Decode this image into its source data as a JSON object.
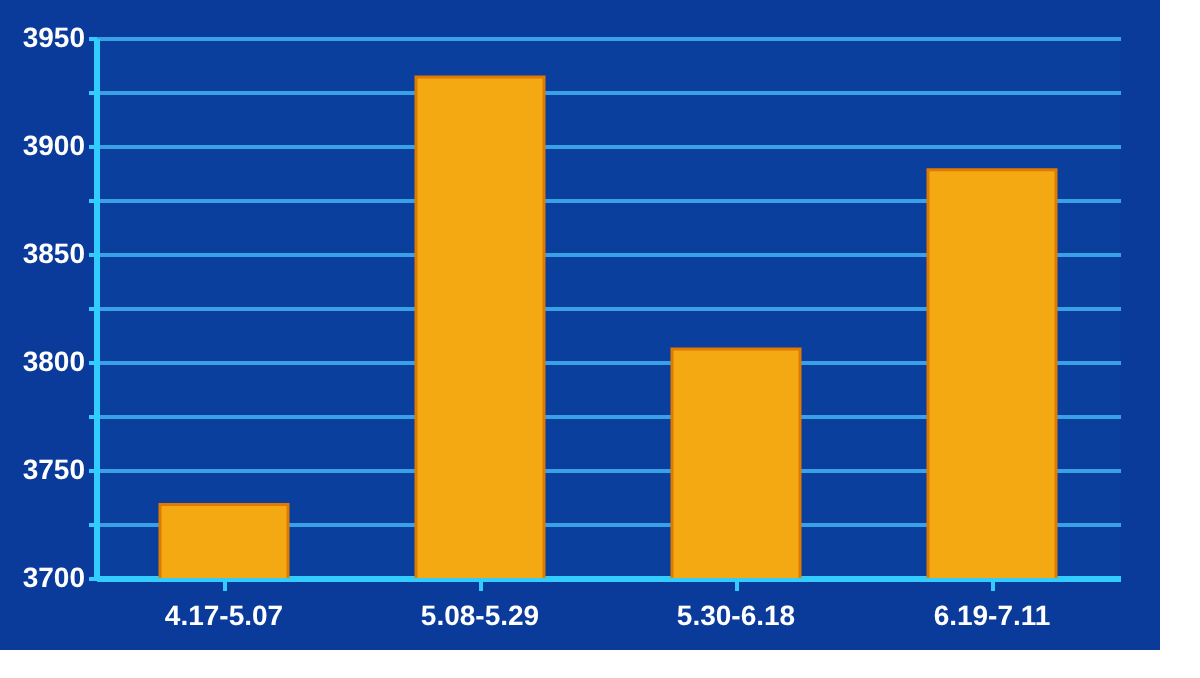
{
  "chart_data": {
    "type": "bar",
    "categories": [
      "4.17-5.07",
      "5.08-5.29",
      "5.30-6.18",
      "6.19-7.11"
    ],
    "values": [
      3734,
      3932,
      3806,
      3889
    ],
    "color": "#f4a912",
    "ylim": [
      3700,
      3950
    ],
    "yticks": [
      3700,
      {
        "value": 3725,
        "label": null
      },
      3750,
      {
        "value": 3775,
        "label": null
      },
      3800,
      {
        "value": 3825,
        "label": null
      },
      3850,
      {
        "value": 3875,
        "label": null
      },
      3900,
      {
        "value": 3925,
        "label": null
      },
      3950
    ],
    "grid": "y"
  }
}
